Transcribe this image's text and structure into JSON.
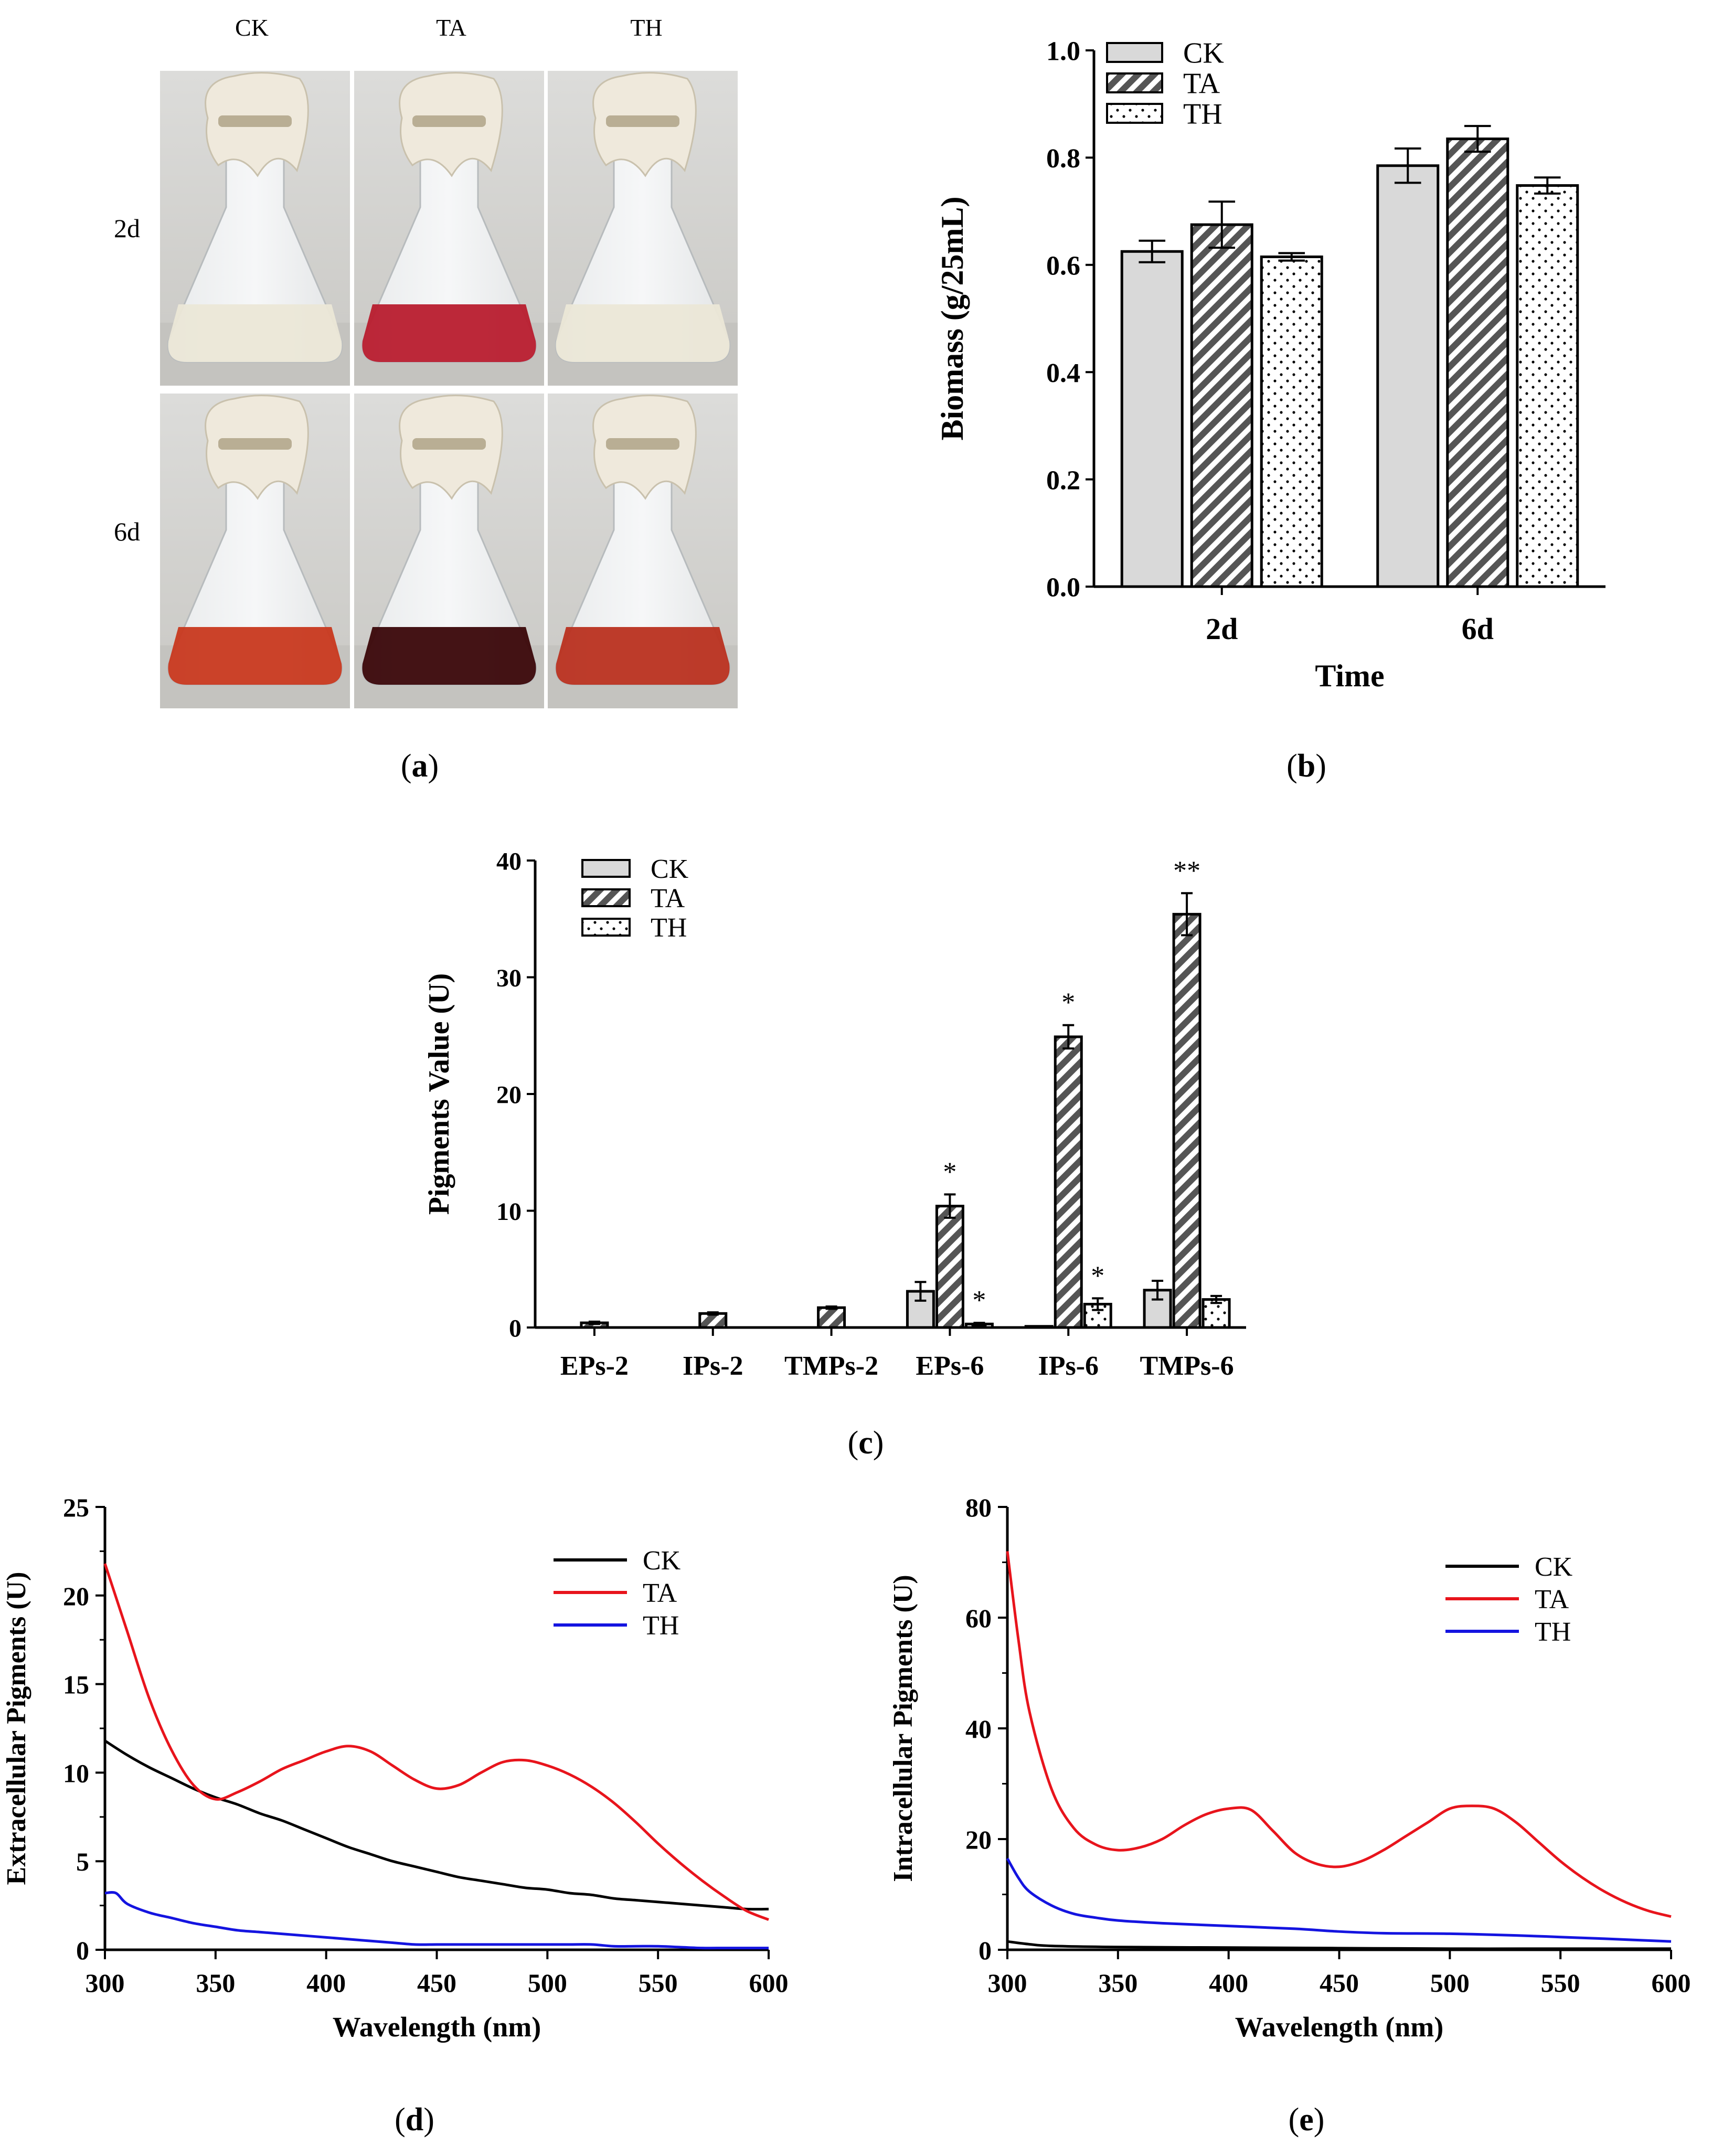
{
  "panels": {
    "a": {
      "caption_open": "(",
      "caption_letter": "a",
      "caption_close": ")",
      "columns": [
        "CK",
        "TA",
        "TH"
      ],
      "rows": [
        "2d",
        "6d"
      ]
    },
    "b": {
      "caption_open": "(",
      "caption_letter": "b",
      "caption_close": ")"
    },
    "c": {
      "caption_open": "(",
      "caption_letter": "c",
      "caption_close": ")"
    },
    "d": {
      "caption_open": "(",
      "caption_letter": "d",
      "caption_close": ")"
    },
    "e": {
      "caption_open": "(",
      "caption_letter": "e",
      "caption_close": ")"
    }
  },
  "colors": {
    "ck_bar": "#d9d9d9",
    "ta_bar": "#595959",
    "line_ck": "#000000",
    "line_ta": "#e8141c",
    "line_th": "#1414e0"
  },
  "chart_data": [
    {
      "id": "b",
      "type": "bar",
      "title": "",
      "xlabel": "Time",
      "ylabel": "Biomass (g/25mL)",
      "categories": [
        "2d",
        "6d"
      ],
      "ylim": [
        0,
        1.0
      ],
      "yticks": [
        "0.0",
        "0.2",
        "0.4",
        "0.6",
        "0.8",
        "1.0"
      ],
      "series": [
        {
          "name": "CK",
          "values": [
            0.625,
            0.785
          ],
          "errors": [
            0.02,
            0.032
          ]
        },
        {
          "name": "TA",
          "values": [
            0.675,
            0.835
          ],
          "errors": [
            0.043,
            0.024
          ]
        },
        {
          "name": "TH",
          "values": [
            0.615,
            0.748
          ],
          "errors": [
            0.007,
            0.015
          ]
        }
      ],
      "legend": "top-left"
    },
    {
      "id": "c",
      "type": "bar",
      "title": "",
      "xlabel": "",
      "ylabel": "Pigments Value (U)",
      "categories": [
        "EPs-2",
        "IPs-2",
        "TMPs-2",
        "EPs-6",
        "IPs-6",
        "TMPs-6"
      ],
      "ylim": [
        0,
        40
      ],
      "yticks": [
        "0",
        "10",
        "20",
        "30",
        "40"
      ],
      "series": [
        {
          "name": "CK",
          "values": [
            0,
            0,
            0,
            3.1,
            0.1,
            3.2
          ],
          "errors": [
            0,
            0,
            0,
            0.8,
            0,
            0.8
          ]
        },
        {
          "name": "TA",
          "values": [
            0.4,
            1.2,
            1.7,
            10.4,
            24.9,
            35.4
          ],
          "errors": [
            0.1,
            0.1,
            0.1,
            1.0,
            1.0,
            1.8
          ]
        },
        {
          "name": "TH",
          "values": [
            0,
            0,
            0,
            0.3,
            2.0,
            2.4
          ],
          "errors": [
            0,
            0,
            0,
            0.1,
            0.5,
            0.3
          ]
        }
      ],
      "annotations": [
        {
          "category": "EPs-6",
          "series": "TA",
          "text": "*"
        },
        {
          "category": "EPs-6",
          "series": "TH",
          "text": "*"
        },
        {
          "category": "IPs-6",
          "series": "TA",
          "text": "*"
        },
        {
          "category": "IPs-6",
          "series": "TH",
          "text": "*"
        },
        {
          "category": "TMPs-6",
          "series": "TA",
          "text": "**"
        }
      ],
      "legend": "top-left"
    },
    {
      "id": "d",
      "type": "line",
      "title": "",
      "xlabel": "Wavelength (nm)",
      "ylabel": "Extracellular Pigments (U)",
      "xlim": [
        300,
        600
      ],
      "ylim": [
        0,
        25
      ],
      "xticks": [
        "300",
        "350",
        "400",
        "450",
        "500",
        "550",
        "600"
      ],
      "yticks": [
        "0",
        "5",
        "10",
        "15",
        "20",
        "25"
      ],
      "series": [
        {
          "name": "CK",
          "x": [
            300,
            310,
            320,
            330,
            340,
            350,
            360,
            370,
            380,
            390,
            400,
            410,
            420,
            430,
            440,
            450,
            460,
            470,
            480,
            490,
            500,
            510,
            520,
            530,
            540,
            550,
            560,
            570,
            580,
            590,
            600
          ],
          "y": [
            11.8,
            11.0,
            10.3,
            9.7,
            9.1,
            8.6,
            8.2,
            7.7,
            7.3,
            6.8,
            6.3,
            5.8,
            5.4,
            5.0,
            4.7,
            4.4,
            4.1,
            3.9,
            3.7,
            3.5,
            3.4,
            3.2,
            3.1,
            2.9,
            2.8,
            2.7,
            2.6,
            2.5,
            2.4,
            2.3,
            2.3
          ]
        },
        {
          "name": "TA",
          "x": [
            300,
            310,
            320,
            330,
            340,
            350,
            360,
            370,
            380,
            390,
            400,
            410,
            420,
            430,
            440,
            450,
            460,
            470,
            480,
            490,
            500,
            510,
            520,
            530,
            540,
            550,
            560,
            570,
            580,
            590,
            600
          ],
          "y": [
            21.8,
            18.0,
            14.2,
            11.3,
            9.3,
            8.5,
            8.9,
            9.5,
            10.2,
            10.7,
            11.2,
            11.5,
            11.2,
            10.4,
            9.6,
            9.1,
            9.3,
            10.0,
            10.6,
            10.7,
            10.4,
            9.9,
            9.2,
            8.3,
            7.2,
            6.0,
            4.9,
            3.9,
            3.0,
            2.2,
            1.7
          ]
        },
        {
          "name": "TH",
          "x": [
            300,
            305,
            310,
            320,
            330,
            340,
            350,
            360,
            370,
            380,
            390,
            400,
            410,
            420,
            430,
            440,
            450,
            460,
            470,
            480,
            490,
            500,
            510,
            520,
            530,
            540,
            550,
            560,
            570,
            580,
            590,
            600
          ],
          "y": [
            3.2,
            3.2,
            2.6,
            2.1,
            1.8,
            1.5,
            1.3,
            1.1,
            1.0,
            0.9,
            0.8,
            0.7,
            0.6,
            0.5,
            0.4,
            0.3,
            0.3,
            0.3,
            0.3,
            0.3,
            0.3,
            0.3,
            0.3,
            0.3,
            0.2,
            0.2,
            0.2,
            0.15,
            0.1,
            0.1,
            0.1,
            0.1
          ]
        }
      ],
      "legend": "top-right"
    },
    {
      "id": "e",
      "type": "line",
      "title": "",
      "xlabel": "Wavelength (nm)",
      "ylabel": "Intracellular Pigments (U)",
      "xlim": [
        300,
        600
      ],
      "ylim": [
        0,
        80
      ],
      "xticks": [
        "300",
        "350",
        "400",
        "450",
        "500",
        "550",
        "600"
      ],
      "yticks": [
        "0",
        "20",
        "40",
        "60",
        "80"
      ],
      "series": [
        {
          "name": "CK",
          "x": [
            300,
            310,
            320,
            350,
            400,
            450,
            500,
            550,
            600
          ],
          "y": [
            1.5,
            1.0,
            0.7,
            0.5,
            0.4,
            0.3,
            0.2,
            0.2,
            0.2
          ]
        },
        {
          "name": "TA",
          "x": [
            300,
            305,
            310,
            320,
            330,
            340,
            350,
            360,
            370,
            380,
            390,
            400,
            410,
            420,
            430,
            440,
            450,
            460,
            470,
            480,
            490,
            500,
            510,
            520,
            530,
            540,
            550,
            560,
            570,
            580,
            590,
            600
          ],
          "y": [
            72,
            56,
            43,
            29,
            22,
            19,
            18,
            18.5,
            20,
            22.5,
            24.5,
            25.5,
            25.3,
            21.5,
            17.5,
            15.5,
            15,
            16,
            18,
            20.5,
            23,
            25.5,
            26,
            25.5,
            23,
            19.5,
            16,
            13,
            10.5,
            8.5,
            7,
            6
          ]
        },
        {
          "name": "TH",
          "x": [
            300,
            305,
            310,
            320,
            330,
            340,
            350,
            370,
            400,
            430,
            450,
            470,
            500,
            530,
            550,
            570,
            600
          ],
          "y": [
            16.5,
            13,
            10.5,
            8,
            6.5,
            5.8,
            5.3,
            4.8,
            4.3,
            3.8,
            3.3,
            3.0,
            2.9,
            2.6,
            2.3,
            2.0,
            1.5
          ]
        }
      ],
      "legend": "top-right"
    }
  ]
}
